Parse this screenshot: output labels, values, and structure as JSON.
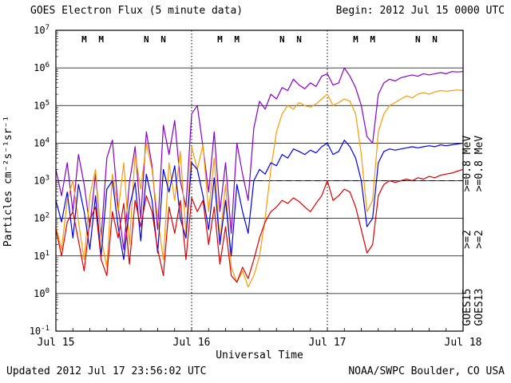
{
  "header": {
    "title": "GOES Electron Flux (5 minute data)",
    "begin": "Begin: 2012 Jul 15 0000 UTC"
  },
  "footer": {
    "updated": "Updated 2012 Jul 17 23:56:02 UTC",
    "source": "NOAA/SWPC Boulder, CO USA"
  },
  "chart_data": {
    "type": "line",
    "title": "GOES Electron Flux (5 minute data)",
    "xlabel": "Universal Time",
    "ylabel": "Particles cm⁻²s⁻¹sr⁻¹",
    "yscale": "log",
    "ylim_exponents": [
      -1,
      7
    ],
    "x_hours_range": [
      0,
      72
    ],
    "x_ticks": [
      {
        "hour": 0,
        "label": "Jul 15"
      },
      {
        "hour": 24,
        "label": "Jul 16"
      },
      {
        "hour": 48,
        "label": "Jul 17"
      },
      {
        "hour": 72,
        "label": "Jul 18"
      }
    ],
    "day_boundaries_hours": [
      24,
      48
    ],
    "threshold_line": {
      "value": 1000,
      "style": "dashed",
      "color": "#000000"
    },
    "x": [
      0,
      1,
      2,
      3,
      4,
      5,
      6,
      7,
      8,
      9,
      10,
      11,
      12,
      13,
      14,
      15,
      16,
      17,
      18,
      19,
      20,
      21,
      22,
      23,
      24,
      25,
      26,
      27,
      28,
      29,
      30,
      31,
      32,
      33,
      34,
      35,
      36,
      37,
      38,
      39,
      40,
      41,
      42,
      43,
      44,
      45,
      46,
      47,
      48,
      49,
      50,
      51,
      52,
      53,
      54,
      55,
      56,
      57,
      58,
      59,
      60,
      61,
      62,
      63,
      64,
      65,
      66,
      67,
      68,
      69,
      70,
      71,
      72
    ],
    "series": [
      {
        "name": "GOES15 >=0.8 MeV",
        "color": "#8800cc",
        "y": [
          2000,
          400,
          3000,
          150,
          5000,
          800,
          60,
          1500,
          30,
          4000,
          12000,
          200,
          15,
          900,
          8000,
          100,
          20000,
          2500,
          50,
          30000,
          5000,
          40000,
          1000,
          200,
          60000,
          100000,
          8000,
          500,
          20000,
          150,
          3000,
          40,
          10000,
          1500,
          300,
          25000,
          130000,
          80000,
          200000,
          150000,
          300000,
          250000,
          500000,
          350000,
          280000,
          400000,
          320000,
          600000,
          700000,
          350000,
          400000,
          1000000,
          600000,
          300000,
          100000,
          15000,
          10000,
          200000,
          400000,
          500000,
          450000,
          550000,
          600000,
          650000,
          600000,
          700000,
          650000,
          700000,
          750000,
          700000,
          800000,
          780000,
          800000
        ]
      },
      {
        "name": "GOES13 >=0.8 MeV",
        "color": "#ff9900",
        "y": [
          60,
          15,
          300,
          1000,
          80,
          8,
          400,
          2000,
          30,
          5,
          1500,
          150,
          3000,
          20,
          5000,
          600,
          10000,
          2000,
          100,
          8,
          3000,
          300,
          6000,
          40,
          8000,
          2000,
          9000,
          150,
          4000,
          25,
          800,
          5,
          2,
          4,
          1.5,
          3,
          10,
          100,
          2000,
          20000,
          60000,
          100000,
          80000,
          120000,
          100000,
          90000,
          110000,
          150000,
          200000,
          100000,
          120000,
          150000,
          130000,
          60000,
          5000,
          150,
          300,
          20000,
          60000,
          100000,
          120000,
          150000,
          180000,
          160000,
          200000,
          220000,
          200000,
          230000,
          250000,
          240000,
          250000,
          260000,
          250000
        ]
      },
      {
        "name": "GOES15 >=2 MeV",
        "color": "#0000ee",
        "y": [
          300,
          80,
          500,
          30,
          800,
          150,
          15,
          400,
          10,
          600,
          1000,
          60,
          8,
          200,
          900,
          25,
          1500,
          300,
          12,
          2000,
          500,
          2500,
          100,
          30,
          3000,
          2000,
          400,
          50,
          1200,
          20,
          300,
          10,
          800,
          150,
          40,
          1000,
          2000,
          1500,
          3000,
          2500,
          5000,
          4000,
          7000,
          6000,
          5000,
          6500,
          5500,
          8000,
          10000,
          5000,
          6000,
          12000,
          8000,
          4000,
          1000,
          60,
          100,
          3000,
          6000,
          7000,
          6500,
          7000,
          7500,
          8000,
          7500,
          8000,
          8500,
          8000,
          9000,
          8500,
          9000,
          9500,
          10000
        ]
      },
      {
        "name": "GOES13 >=2 MeV",
        "color": "#dd0000",
        "y": [
          50,
          10,
          80,
          150,
          25,
          4,
          90,
          200,
          8,
          3,
          150,
          30,
          250,
          6,
          300,
          60,
          400,
          150,
          15,
          3,
          200,
          40,
          300,
          8,
          350,
          150,
          300,
          20,
          200,
          6,
          60,
          3,
          2,
          5,
          2.5,
          8,
          30,
          80,
          150,
          200,
          300,
          250,
          350,
          280,
          200,
          150,
          250,
          400,
          1000,
          300,
          400,
          600,
          500,
          200,
          50,
          12,
          20,
          400,
          800,
          1000,
          900,
          1000,
          1100,
          1000,
          1200,
          1100,
          1300,
          1200,
          1400,
          1500,
          1600,
          1800,
          2000
        ]
      }
    ],
    "satellite_markers": [
      {
        "label": "M",
        "color": "#cc0000",
        "hour": 5
      },
      {
        "label": "M",
        "color": "#0000dd",
        "hour": 8
      },
      {
        "label": "N",
        "color": "#cc0000",
        "hour": 16
      },
      {
        "label": "N",
        "color": "#0000dd",
        "hour": 19
      },
      {
        "label": "M",
        "color": "#cc0000",
        "hour": 29
      },
      {
        "label": "M",
        "color": "#0000dd",
        "hour": 32
      },
      {
        "label": "N",
        "color": "#cc0000",
        "hour": 40
      },
      {
        "label": "N",
        "color": "#0000dd",
        "hour": 43
      },
      {
        "label": "M",
        "color": "#cc0000",
        "hour": 53
      },
      {
        "label": "M",
        "color": "#0000dd",
        "hour": 56
      },
      {
        "label": "N",
        "color": "#cc0000",
        "hour": 64
      },
      {
        "label": "N",
        "color": "#0000dd",
        "hour": 67
      }
    ],
    "legend": {
      "columns": [
        {
          "satellite": "GOES15",
          "satellite_color": "#000000",
          "channels": [
            {
              "label": ">=0.8 MeV",
              "color": "#8800cc"
            },
            {
              "label": ">=2",
              "color": "#0000ee"
            }
          ]
        },
        {
          "satellite": "GOES13",
          "satellite_color": "#000000",
          "channels": [
            {
              "label": ">=0.8 MeV",
              "color": "#ff9900"
            },
            {
              "label": ">=2",
              "color": "#dd0000"
            }
          ]
        }
      ]
    }
  }
}
